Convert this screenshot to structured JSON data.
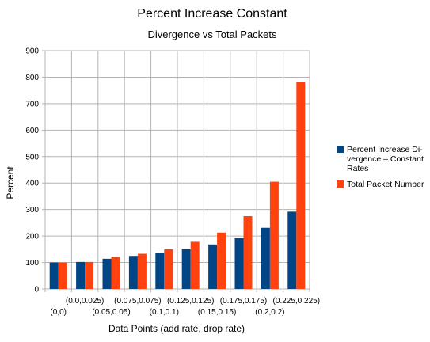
{
  "chart_data": {
    "type": "bar",
    "title": "Percent Increase Constant",
    "subtitle": "Divergence vs Total Packets",
    "xlabel": "Data Points (add rate, drop rate)",
    "ylabel": "Percent",
    "ylim": [
      0,
      900
    ],
    "yticks": [
      "0",
      "100",
      "200",
      "300",
      "400",
      "500",
      "600",
      "700",
      "800",
      "900"
    ],
    "grid": true,
    "legend_position": "right",
    "categories": [
      "(0,0)",
      "(0.0,0.025)",
      "(0.05,0.05)",
      "(0.075,0.075)",
      "(0.1,0.1)",
      "(0.125,0.125)",
      "(0.15,0.15)",
      "(0.175,0.175)",
      "(0.2,0.2)",
      "(0.225,0.225)"
    ],
    "series": [
      {
        "name_lines": [
          "Percent Increase Di-",
          "vergence – Constant",
          "Rates"
        ],
        "color": "#004586",
        "values": [
          100,
          102,
          114,
          125,
          135,
          150,
          168,
          192,
          231,
          292
        ]
      },
      {
        "name_lines": [
          "Total Packet Number"
        ],
        "color": "#ff420e",
        "values": [
          100,
          102,
          121,
          133,
          150,
          178,
          213,
          275,
          405,
          781
        ]
      }
    ]
  }
}
